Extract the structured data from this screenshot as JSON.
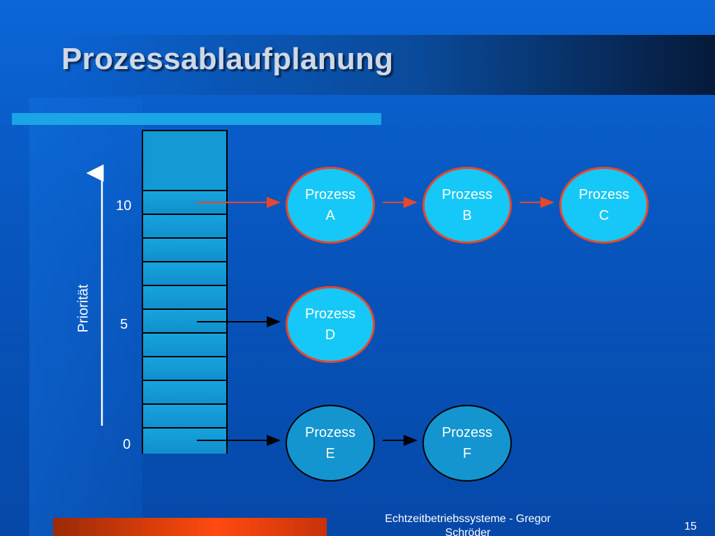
{
  "slide": {
    "title": "Prozessablaufplanung",
    "footer": "Echtzeitbetriebssysteme - Gregor Schröder",
    "page_number": "15"
  },
  "axis": {
    "label": "Priorität",
    "ticks": [
      "10",
      "5",
      "0"
    ]
  },
  "processes": [
    {
      "line1": "Prozess",
      "line2": "A"
    },
    {
      "line1": "Prozess",
      "line2": "B"
    },
    {
      "line1": "Prozess",
      "line2": "C"
    },
    {
      "line1": "Prozess",
      "line2": "D"
    },
    {
      "line1": "Prozess",
      "line2": "E"
    },
    {
      "line1": "Prozess",
      "line2": "F"
    }
  ],
  "colors": {
    "accent_arrow": "#e8472c",
    "normal_arrow": "#000000",
    "active_process": "#16c8f7",
    "idle_process": "#1495cf"
  }
}
